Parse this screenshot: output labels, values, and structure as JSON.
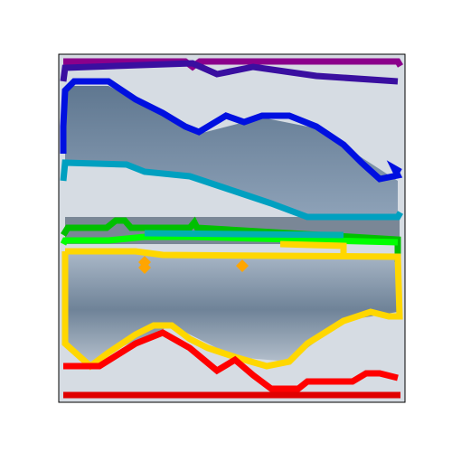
{
  "image": {
    "contour_colors": [
      "#8b008b",
      "#3a0fa0",
      "#0010e0",
      "#00a0c0",
      "#00c000",
      "#00ff00",
      "#00b0b0",
      "#ffd700",
      "#ffa500",
      "#ff0000",
      "#e00000"
    ]
  }
}
